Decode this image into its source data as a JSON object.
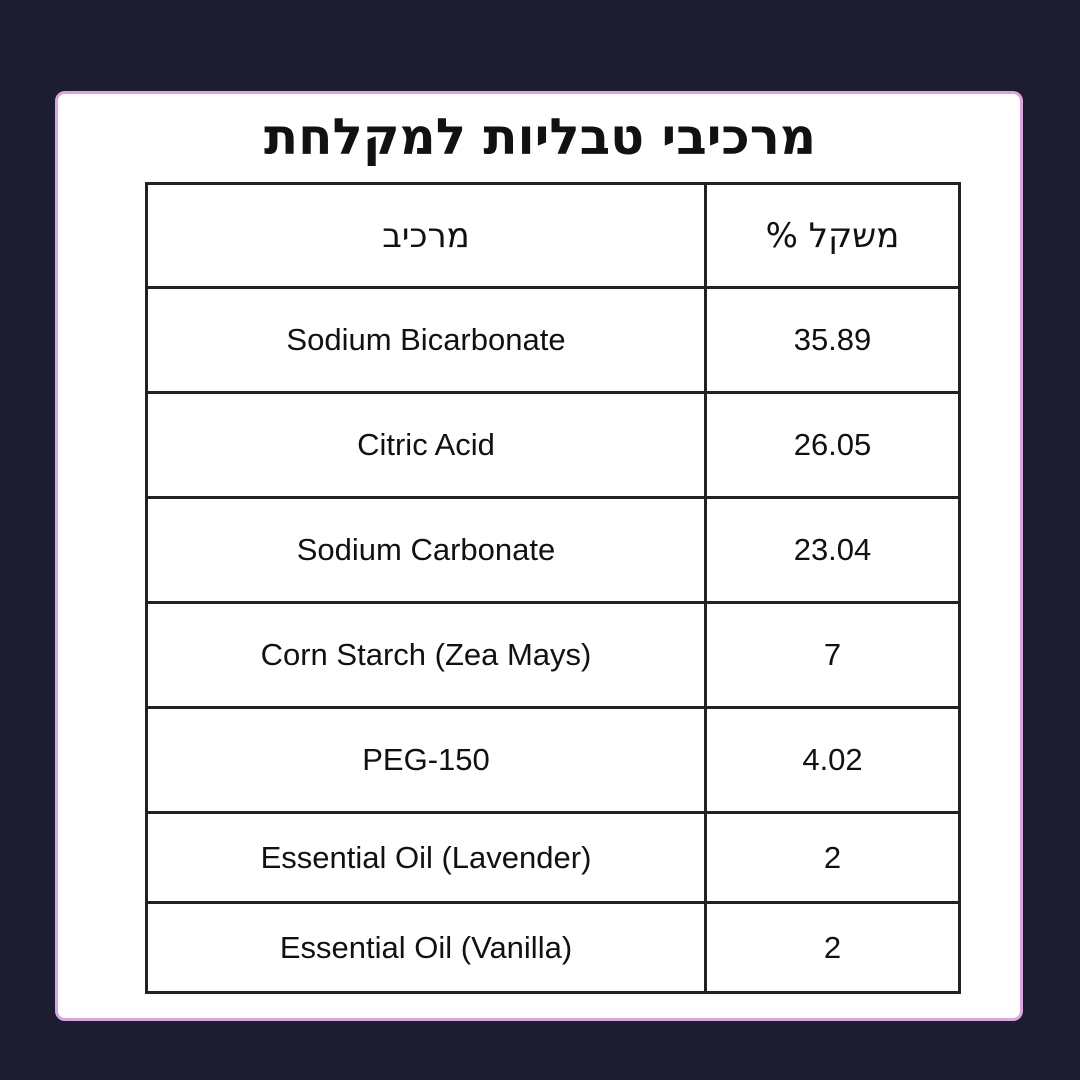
{
  "title": "מרכיבי טבליות למקלחת",
  "headers": {
    "ingredient": "מרכיב",
    "weight": "משקל %"
  },
  "rows": [
    {
      "ingredient": "Sodium Bicarbonate",
      "weight": "35.89"
    },
    {
      "ingredient": "Citric Acid",
      "weight": "26.05"
    },
    {
      "ingredient": "Sodium Carbonate",
      "weight": "23.04"
    },
    {
      "ingredient": "Corn Starch (Zea Mays)",
      "weight": "7"
    },
    {
      "ingredient": "PEG-150",
      "weight": "4.02"
    },
    {
      "ingredient": "Essential Oil (Lavender)",
      "weight": "2"
    },
    {
      "ingredient": "Essential Oil (Vanilla)",
      "weight": "2"
    }
  ],
  "colors": {
    "background": "#1d1c30",
    "card": "#ffffff",
    "card_border": "#d9a6df"
  }
}
